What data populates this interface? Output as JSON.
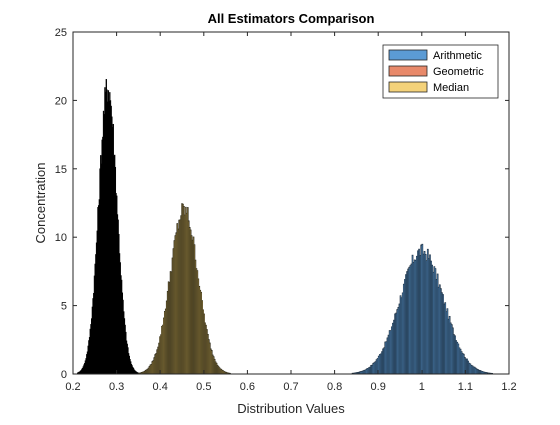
{
  "chart_data": {
    "type": "histogram",
    "title": "All Estimators Comparison",
    "xlabel": "Distribution Values",
    "ylabel": "Concentration",
    "xlim": [
      0.2,
      1.2
    ],
    "ylim": [
      0,
      25
    ],
    "xticks": [
      0.2,
      0.3,
      0.4,
      0.5,
      0.6,
      0.7,
      0.8,
      0.9,
      1,
      1.1,
      1.2
    ],
    "xtick_labels": [
      "0.2",
      "0.3",
      "0.4",
      "0.5",
      "0.6",
      "0.7",
      "0.8",
      "0.9",
      "1",
      "1.1",
      "1.2"
    ],
    "yticks": [
      0,
      5,
      10,
      15,
      20,
      25
    ],
    "ytick_labels": [
      "0",
      "5",
      "10",
      "15",
      "20",
      "25"
    ],
    "grid": false,
    "legend_position": "top-right",
    "series": [
      {
        "name": "Arithmetic",
        "color": "#5b9bd5",
        "distribution": "approximately normal",
        "peak_x": 1.0,
        "peak_density": 9.0,
        "x_range": [
          0.83,
          1.19
        ]
      },
      {
        "name": "Geometric",
        "color": "#e8896a",
        "distribution": "approximately normal",
        "peak_x": 0.28,
        "peak_density": 21.0,
        "x_range": [
          0.21,
          0.36
        ]
      },
      {
        "name": "Median",
        "color": "#f4d27a",
        "distribution": "approximately normal",
        "peak_x": 0.455,
        "peak_density": 12.0,
        "x_range": [
          0.35,
          0.58
        ]
      }
    ],
    "note_visible": "Geometric bars appear black due to dense bar edges; Median bars appear dark olive"
  }
}
